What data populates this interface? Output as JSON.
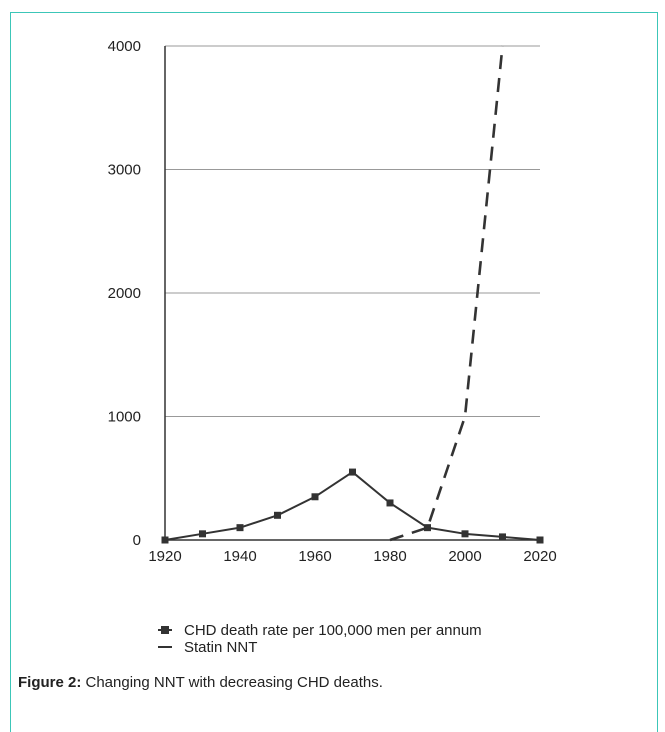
{
  "caption": {
    "label": "Figure 2:",
    "text": " Changing NNT with decreasing CHD deaths."
  },
  "colors": {
    "frame": "#3cc6b8",
    "series": "#333333",
    "grid": "#999999"
  },
  "chart_data": {
    "type": "line",
    "title": "",
    "xlabel": "",
    "ylabel": "",
    "xlim": [
      1920,
      2020
    ],
    "ylim": [
      0,
      4000
    ],
    "x_ticks": [
      1920,
      1940,
      1960,
      1980,
      2000,
      2020
    ],
    "y_ticks": [
      0,
      1000,
      2000,
      3000,
      4000
    ],
    "grid": "horizontal",
    "legend_position": "bottom",
    "series": [
      {
        "name": "CHD death rate per 100,000 men per annum",
        "style": "solid",
        "marker": "square",
        "x": [
          1920,
          1930,
          1940,
          1950,
          1960,
          1970,
          1980,
          1990,
          2000,
          2010,
          2020
        ],
        "y": [
          0,
          50,
          100,
          200,
          350,
          550,
          300,
          100,
          50,
          25,
          0
        ]
      },
      {
        "name": "Statin NNT",
        "style": "dashed",
        "marker": "none",
        "x": [
          1980,
          1990,
          2000,
          2010
        ],
        "y": [
          0,
          100,
          1000,
          4000
        ]
      }
    ]
  }
}
